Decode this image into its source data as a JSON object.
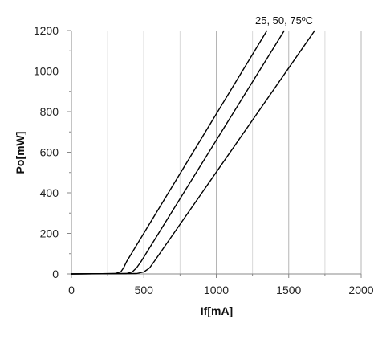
{
  "chart_data": {
    "type": "line",
    "xlabel": "If[mA]",
    "ylabel": "Po[mW]",
    "xlim": [
      0,
      2000
    ],
    "ylim": [
      0,
      1200
    ],
    "x_ticks": [
      0,
      500,
      1000,
      1500,
      2000
    ],
    "y_ticks": [
      0,
      200,
      400,
      600,
      800,
      1000,
      1200
    ],
    "x_tick_labels": [
      "0",
      "500",
      "1000",
      "1500",
      "2000"
    ],
    "y_tick_labels": [
      "0",
      "200",
      "400",
      "600",
      "800",
      "1000",
      "1200"
    ],
    "grid": "vertical major and minor lines",
    "annotation": "25,   50,   75ºC",
    "series": [
      {
        "x": [
          0,
          300,
          340,
          360,
          380,
          1350
        ],
        "y": [
          0,
          2,
          10,
          30,
          60,
          1200
        ]
      },
      {
        "x": [
          0,
          380,
          420,
          450,
          480,
          1470
        ],
        "y": [
          0,
          2,
          10,
          30,
          60,
          1200
        ]
      },
      {
        "x": [
          0,
          450,
          500,
          540,
          570,
          1680
        ],
        "y": [
          0,
          2,
          10,
          30,
          60,
          1200
        ]
      }
    ]
  }
}
